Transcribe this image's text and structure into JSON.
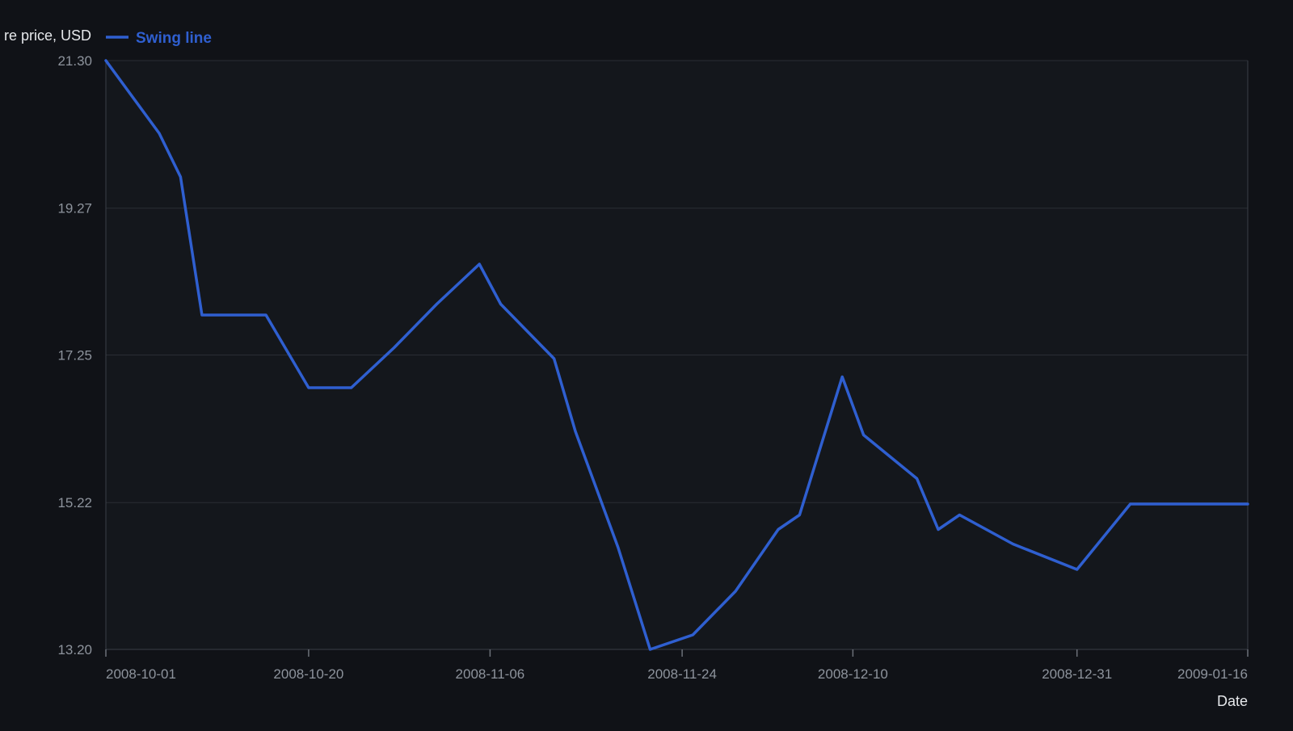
{
  "chart_data": {
    "type": "line",
    "title": "",
    "ylabel": "re price, USD",
    "xlabel": "Date",
    "ylim": [
      13.2,
      21.3
    ],
    "y_ticks": [
      "21.30",
      "19.27",
      "17.25",
      "15.22",
      "13.20"
    ],
    "x_ticks": [
      "2008-10-01",
      "2008-10-20",
      "2008-11-06",
      "2008-11-24",
      "2008-12-10",
      "2008-12-31",
      "2009-01-16"
    ],
    "xlim": [
      "2008-10-01",
      "2009-01-16"
    ],
    "grid": true,
    "legend_position": "top-left",
    "series": [
      {
        "name": "Swing line",
        "color": "#2f5fd0",
        "points": [
          {
            "x": "2008-10-01",
            "y": 21.3
          },
          {
            "x": "2008-10-06",
            "y": 20.3
          },
          {
            "x": "2008-10-08",
            "y": 19.7
          },
          {
            "x": "2008-10-10",
            "y": 17.8
          },
          {
            "x": "2008-10-16",
            "y": 17.8
          },
          {
            "x": "2008-10-20",
            "y": 16.8
          },
          {
            "x": "2008-10-24",
            "y": 16.8
          },
          {
            "x": "2008-10-28",
            "y": 17.35
          },
          {
            "x": "2008-11-01",
            "y": 17.95
          },
          {
            "x": "2008-11-05",
            "y": 18.5
          },
          {
            "x": "2008-11-07",
            "y": 17.95
          },
          {
            "x": "2008-11-12",
            "y": 17.2
          },
          {
            "x": "2008-11-14",
            "y": 16.2
          },
          {
            "x": "2008-11-18",
            "y": 14.6
          },
          {
            "x": "2008-11-21",
            "y": 13.2
          },
          {
            "x": "2008-11-25",
            "y": 13.4
          },
          {
            "x": "2008-11-29",
            "y": 14.0
          },
          {
            "x": "2008-12-03",
            "y": 14.85
          },
          {
            "x": "2008-12-05",
            "y": 15.05
          },
          {
            "x": "2008-12-09",
            "y": 16.95
          },
          {
            "x": "2008-12-11",
            "y": 16.15
          },
          {
            "x": "2008-12-16",
            "y": 15.55
          },
          {
            "x": "2008-12-18",
            "y": 14.85
          },
          {
            "x": "2008-12-20",
            "y": 15.05
          },
          {
            "x": "2008-12-25",
            "y": 14.65
          },
          {
            "x": "2008-12-31",
            "y": 14.3
          },
          {
            "x": "2009-01-05",
            "y": 15.2
          },
          {
            "x": "2009-01-16",
            "y": 15.2
          }
        ]
      }
    ]
  }
}
